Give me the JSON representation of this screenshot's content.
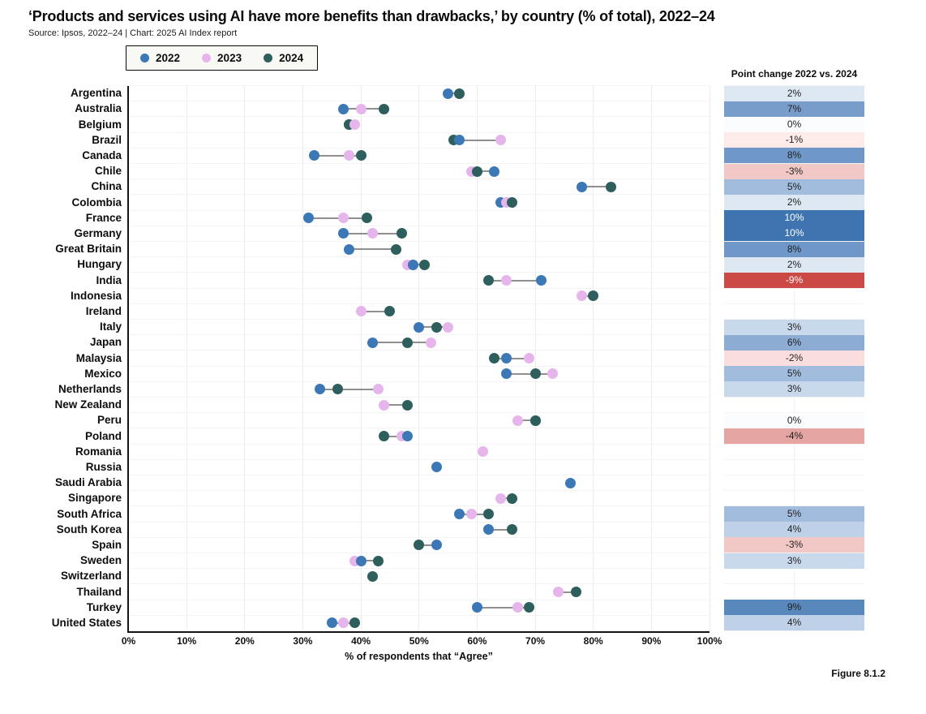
{
  "chart_data": {
    "type": "scatter",
    "subtype": "dumbbell-dot-plot",
    "title": "‘Products and services using AI have more benefits than drawbacks,’ by country (% of total), 2022–24",
    "source": "Source: Ipsos, 2022–24 | Chart: 2025 AI Index report",
    "xlabel": "% of respondents that “Agree”",
    "figure_label": "Figure 8.1.2",
    "xlim": [
      0,
      100
    ],
    "x_ticks": [
      "0%",
      "10%",
      "20%",
      "30%",
      "40%",
      "50%",
      "60%",
      "70%",
      "80%",
      "90%",
      "100%"
    ],
    "grid": "vertical light gridlines every 10%, faint horizontal row separators",
    "legend_position": "top-left",
    "categories": [
      "Argentina",
      "Australia",
      "Belgium",
      "Brazil",
      "Canada",
      "Chile",
      "China",
      "Colombia",
      "France",
      "Germany",
      "Great Britain",
      "Hungary",
      "India",
      "Indonesia",
      "Ireland",
      "Italy",
      "Japan",
      "Malaysia",
      "Mexico",
      "Netherlands",
      "New Zealand",
      "Peru",
      "Poland",
      "Romania",
      "Russia",
      "Saudi Arabia",
      "Singapore",
      "South Africa",
      "South Korea",
      "Spain",
      "Sweden",
      "Switzerland",
      "Thailand",
      "Turkey",
      "United States"
    ],
    "series": [
      {
        "name": "2022",
        "color": "#3c78b5",
        "values": [
          55,
          37,
          38,
          57,
          32,
          63,
          78,
          64,
          31,
          37,
          38,
          49,
          71,
          null,
          null,
          50,
          42,
          65,
          65,
          33,
          null,
          70,
          48,
          null,
          53,
          76,
          null,
          57,
          62,
          53,
          40,
          null,
          null,
          60,
          35
        ]
      },
      {
        "name": "2023",
        "color": "#e5b5ec",
        "values": [
          null,
          40,
          39,
          64,
          38,
          59,
          null,
          65,
          37,
          42,
          null,
          48,
          65,
          78,
          40,
          55,
          52,
          69,
          73,
          43,
          44,
          67,
          47,
          61,
          null,
          null,
          64,
          59,
          null,
          null,
          39,
          null,
          74,
          67,
          37
        ]
      },
      {
        "name": "2024",
        "color": "#2e5f5d",
        "values": [
          57,
          44,
          38,
          56,
          40,
          60,
          83,
          66,
          41,
          47,
          46,
          51,
          62,
          80,
          45,
          53,
          48,
          63,
          70,
          36,
          48,
          70,
          44,
          null,
          null,
          null,
          66,
          62,
          66,
          50,
          43,
          42,
          77,
          69,
          39
        ]
      }
    ],
    "point_change": {
      "header": "Point change 2022 vs. 2024",
      "values": [
        2,
        7,
        0,
        -1,
        8,
        -3,
        5,
        2,
        10,
        10,
        8,
        2,
        -9,
        null,
        null,
        3,
        6,
        -2,
        5,
        3,
        null,
        0,
        -4,
        null,
        null,
        null,
        null,
        5,
        4,
        -3,
        3,
        null,
        null,
        9,
        4
      ],
      "scale": {
        "10": {
          "bg": "#3e74b0",
          "text": "#ffffff"
        },
        "9": {
          "bg": "#5988bd",
          "text": "#222222"
        },
        "8": {
          "bg": "#6f97c8",
          "text": "#222222"
        },
        "7": {
          "bg": "#789dcb",
          "text": "#222222"
        },
        "6": {
          "bg": "#8cacd4",
          "text": "#222222"
        },
        "5": {
          "bg": "#a2bcdd",
          "text": "#222222"
        },
        "4": {
          "bg": "#bed1e8",
          "text": "#222222"
        },
        "3": {
          "bg": "#c9d9ec",
          "text": "#222222"
        },
        "2": {
          "bg": "#dde8f3",
          "text": "#222222"
        },
        "0": {
          "bg": "#fbfcfd",
          "text": "#222222"
        },
        "-1": {
          "bg": "#fcebe9",
          "text": "#222222"
        },
        "-2": {
          "bg": "#f9dedd",
          "text": "#222222"
        },
        "-3": {
          "bg": "#f2c8c6",
          "text": "#222222"
        },
        "-4": {
          "bg": "#e5a5a2",
          "text": "#222222"
        },
        "-9": {
          "bg": "#cc4a45",
          "text": "#ffffff"
        }
      }
    }
  }
}
